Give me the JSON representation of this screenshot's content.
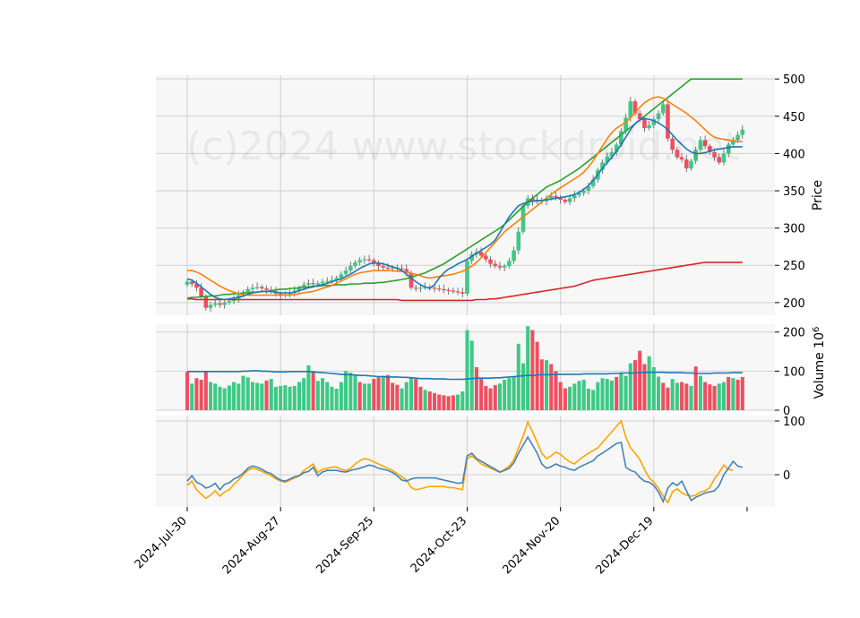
{
  "watermark": "(c)2024 www.stockdroid.net",
  "colors": {
    "up": "#3dc985",
    "down": "#ef4f60",
    "panel_bg": "#f7f7f7",
    "grid": "#cfcfcf",
    "ma_fast": "#1f77b4",
    "ma_mid": "#ff7f0e",
    "ma_slow": "#2ca02c",
    "ma_long": "#d62728",
    "vol_ma": "#1f77b4",
    "osc_a": "#4682b4",
    "osc_b": "#ffa500"
  },
  "chart_data": {
    "type": "candlestick",
    "x_tick_labels": [
      "2024-Jul-30",
      "2024-Aug-27",
      "2024-Sep-25",
      "2024-Oct-23",
      "2024-Nov-20",
      "2024-Dec-19"
    ],
    "x_tick_index": [
      0,
      20,
      40,
      60,
      80,
      100
    ],
    "n_sessions": 120,
    "price": {
      "ylabel": "Price",
      "ylim": [
        183,
        505
      ],
      "yticks": [
        200,
        250,
        300,
        350,
        400,
        450,
        500
      ],
      "closes": [
        228,
        225,
        220,
        208,
        193,
        197,
        199,
        197,
        200,
        202,
        205,
        210,
        214,
        218,
        220,
        221,
        219,
        217,
        215,
        212,
        210,
        211,
        213,
        216,
        220,
        224,
        226,
        225,
        226,
        228,
        229,
        230,
        233,
        238,
        243,
        249,
        254,
        257,
        258,
        257,
        253,
        249,
        247,
        246,
        247,
        246,
        245,
        240,
        220,
        219,
        220,
        221,
        220,
        219,
        218,
        217,
        216,
        215,
        214,
        212,
        256,
        265,
        268,
        263,
        258,
        252,
        249,
        247,
        249,
        256,
        270,
        295,
        330,
        340,
        335,
        338,
        336,
        340,
        343,
        341,
        338,
        335,
        340,
        344,
        347,
        350,
        356,
        365,
        378,
        388,
        396,
        402,
        412,
        430,
        448,
        470,
        454,
        446,
        434,
        438,
        446,
        454,
        466,
        420,
        405,
        395,
        392,
        380,
        390,
        405,
        418,
        410,
        402,
        395,
        388,
        400,
        412,
        418,
        425,
        432
      ],
      "ma_fast": [
        232,
        230,
        226,
        221,
        216,
        211,
        207,
        205,
        204,
        205,
        206,
        207,
        209,
        211,
        213,
        214,
        215,
        215,
        215,
        214,
        213,
        213,
        213,
        214,
        216,
        218,
        220,
        221,
        223,
        224,
        226,
        228,
        230,
        232,
        235,
        238,
        242,
        246,
        249,
        252,
        253,
        253,
        252,
        250,
        248,
        246,
        243,
        238,
        233,
        228,
        224,
        221,
        219,
        224,
        233,
        240,
        245,
        248,
        252,
        255,
        258,
        262,
        266,
        270,
        274,
        278,
        284,
        294,
        305,
        315,
        323,
        330,
        333,
        335,
        336,
        337,
        337,
        338,
        339,
        340,
        341,
        342,
        343,
        345,
        348,
        352,
        357,
        364,
        372,
        380,
        388,
        395,
        403,
        412,
        422,
        432,
        440,
        445,
        447,
        446,
        444,
        441,
        437,
        432,
        425,
        418,
        412,
        406,
        402,
        400,
        400,
        401,
        403,
        405,
        406,
        407,
        408,
        409,
        409,
        409
      ],
      "ma_mid": [
        243,
        243,
        241,
        238,
        234,
        230,
        226,
        222,
        219,
        216,
        214,
        212,
        211,
        210,
        210,
        210,
        210,
        210,
        210,
        210,
        210,
        210,
        210,
        211,
        212,
        213,
        214,
        215,
        217,
        219,
        221,
        223,
        226,
        229,
        232,
        235,
        238,
        240,
        241,
        242,
        243,
        243,
        243,
        243,
        243,
        242,
        242,
        241,
        239,
        238,
        236,
        234,
        233,
        234,
        235,
        236,
        237,
        238,
        240,
        242,
        245,
        249,
        254,
        260,
        267,
        274,
        281,
        288,
        295,
        300,
        305,
        310,
        315,
        320,
        325,
        330,
        335,
        340,
        345,
        350,
        354,
        358,
        362,
        366,
        370,
        375,
        382,
        390,
        400,
        410,
        420,
        428,
        434,
        438,
        442,
        448,
        455,
        462,
        468,
        472,
        475,
        476,
        474,
        470,
        466,
        462,
        458,
        454,
        449,
        444,
        438,
        432,
        426,
        422,
        420,
        419,
        418,
        417,
        416,
        416
      ],
      "ma_slow": [
        206,
        207,
        207,
        208,
        208,
        209,
        209,
        210,
        211,
        211,
        212,
        212,
        213,
        213,
        214,
        214,
        215,
        215,
        216,
        217,
        218,
        218,
        219,
        219,
        220,
        221,
        221,
        222,
        222,
        223,
        223,
        223,
        224,
        224,
        224,
        225,
        225,
        225,
        226,
        226,
        226,
        227,
        227,
        228,
        229,
        230,
        231,
        232,
        234,
        236,
        238,
        240,
        243,
        246,
        249,
        252,
        256,
        260,
        264,
        268,
        272,
        276,
        280,
        284,
        288,
        292,
        296,
        300,
        305,
        311,
        317,
        323,
        329,
        335,
        340,
        345,
        350,
        355,
        358,
        361,
        364,
        368,
        372,
        376,
        380,
        385,
        390,
        395,
        400,
        405,
        410,
        415,
        420,
        425,
        430,
        435,
        440,
        445,
        450,
        455,
        460,
        465,
        470,
        475,
        480,
        485,
        490,
        495,
        500,
        500,
        500,
        500,
        500,
        500,
        500,
        500,
        500,
        500,
        500,
        500
      ],
      "ma_long": [
        205,
        205,
        204,
        204,
        204,
        204,
        204,
        204,
        204,
        204,
        204,
        204,
        204,
        204,
        204,
        204,
        204,
        204,
        204,
        204,
        204,
        204,
        204,
        204,
        204,
        204,
        204,
        204,
        204,
        204,
        204,
        204,
        204,
        204,
        204,
        204,
        204,
        204,
        204,
        204,
        204,
        204,
        204,
        204,
        204,
        204,
        203,
        203,
        203,
        203,
        203,
        203,
        203,
        203,
        203,
        203,
        203,
        203,
        203,
        203,
        203,
        203,
        204,
        204,
        204,
        205,
        205,
        206,
        207,
        208,
        209,
        210,
        211,
        212,
        213,
        214,
        215,
        216,
        217,
        218,
        219,
        220,
        221,
        222,
        224,
        226,
        228,
        230,
        231,
        232,
        233,
        234,
        235,
        236,
        237,
        238,
        239,
        240,
        241,
        242,
        243,
        244,
        245,
        246,
        247,
        248,
        249,
        250,
        251,
        252,
        253,
        254,
        254,
        254,
        254,
        254,
        254,
        254,
        254,
        254
      ]
    },
    "volume": {
      "ylabel": "Volume  10^6",
      "ylim": [
        0,
        220
      ],
      "yticks": [
        0,
        100,
        200
      ],
      "values": [
        98,
        68,
        82,
        78,
        100,
        72,
        68,
        60,
        56,
        63,
        72,
        68,
        88,
        84,
        72,
        70,
        68,
        76,
        80,
        60,
        62,
        64,
        60,
        62,
        72,
        82,
        115,
        100,
        75,
        82,
        72,
        60,
        55,
        72,
        100,
        96,
        90,
        72,
        68,
        68,
        80,
        84,
        88,
        90,
        70,
        65,
        56,
        72,
        85,
        80,
        60,
        52,
        48,
        44,
        40,
        38,
        36,
        38,
        40,
        48,
        205,
        178,
        110,
        80,
        62,
        56,
        64,
        68,
        78,
        82,
        86,
        170,
        120,
        215,
        205,
        175,
        130,
        128,
        118,
        100,
        72,
        56,
        60,
        68,
        75,
        78,
        55,
        52,
        72,
        82,
        80,
        76,
        85,
        96,
        88,
        120,
        128,
        152,
        118,
        138,
        110,
        86,
        70,
        58,
        80,
        70,
        72,
        68,
        62,
        112,
        88,
        72,
        66,
        62,
        68,
        72,
        85,
        82,
        78,
        85
      ],
      "up": [
        false,
        true,
        false,
        false,
        false,
        true,
        true,
        true,
        true,
        true,
        true,
        true,
        true,
        true,
        true,
        true,
        true,
        false,
        true,
        true,
        true,
        true,
        true,
        true,
        true,
        true,
        true,
        false,
        true,
        true,
        true,
        true,
        true,
        true,
        true,
        true,
        true,
        false,
        true,
        true,
        false,
        false,
        true,
        false,
        false,
        false,
        true,
        true,
        true,
        false,
        false,
        true,
        false,
        false,
        false,
        false,
        false,
        false,
        true,
        true,
        true,
        true,
        false,
        false,
        false,
        false,
        false,
        true,
        true,
        true,
        true,
        true,
        true,
        true,
        false,
        false,
        false,
        true,
        false,
        false,
        false,
        false,
        true,
        true,
        true,
        true,
        true,
        true,
        true,
        true,
        true,
        true,
        false,
        true,
        true,
        true,
        false,
        false,
        false,
        true,
        true,
        true,
        false,
        false,
        true,
        true,
        false,
        false,
        true,
        false,
        true,
        false,
        false,
        false,
        true,
        true,
        false,
        true,
        false,
        false
      ],
      "ma": [
        99,
        99,
        99,
        99,
        99,
        99,
        99,
        99,
        99,
        99,
        99,
        99,
        100,
        100,
        101,
        101,
        100,
        100,
        99,
        98,
        98,
        98,
        99,
        99,
        99,
        99,
        99,
        98,
        97,
        96,
        95,
        94,
        93,
        92,
        91,
        91,
        90,
        89,
        89,
        88,
        87,
        86,
        86,
        85,
        85,
        85,
        84,
        84,
        83,
        82,
        81,
        81,
        81,
        80,
        80,
        80,
        79,
        79,
        79,
        79,
        80,
        81,
        82,
        82,
        82,
        82,
        83,
        83,
        84,
        85,
        86,
        87,
        88,
        89,
        89,
        90,
        91,
        91,
        91,
        92,
        92,
        92,
        92,
        92,
        92,
        93,
        93,
        93,
        93,
        93,
        93,
        94,
        94,
        95,
        95,
        95,
        95,
        96,
        96,
        97,
        97,
        97,
        97,
        96,
        96,
        96,
        96,
        95,
        95,
        94,
        94,
        94,
        94,
        95,
        95,
        95,
        95,
        96,
        96,
        96
      ]
    },
    "oscillator": {
      "ylim": [
        -60,
        110
      ],
      "yticks": [
        0,
        100
      ],
      "line_a": [
        -12,
        -2,
        -14,
        -18,
        -25,
        -22,
        -16,
        -28,
        -18,
        -15,
        -8,
        -4,
        3,
        12,
        16,
        14,
        10,
        5,
        2,
        -5,
        -10,
        -12,
        -8,
        -4,
        -2,
        4,
        6,
        14,
        -2,
        5,
        8,
        8,
        8,
        6,
        5,
        8,
        10,
        12,
        15,
        18,
        16,
        12,
        10,
        8,
        4,
        -2,
        -10,
        -12,
        -8,
        -6,
        -6,
        -6,
        -6,
        -6,
        -8,
        -10,
        -12,
        -14,
        -16,
        -15,
        35,
        40,
        30,
        25,
        20,
        15,
        10,
        5,
        8,
        12,
        22,
        40,
        55,
        70,
        55,
        40,
        20,
        12,
        15,
        20,
        16,
        14,
        10,
        8,
        14,
        18,
        22,
        26,
        35,
        40,
        46,
        52,
        58,
        60,
        14,
        8,
        5,
        -5,
        -12,
        -14,
        -20,
        -32,
        -50,
        -25,
        -15,
        -20,
        -12,
        -30,
        -48,
        -42,
        -38,
        -34,
        -32,
        -30,
        -20,
        0,
        12,
        25,
        16,
        14
      ],
      "line_b": [
        -20,
        -12,
        -28,
        -36,
        -44,
        -38,
        -30,
        -40,
        -32,
        -28,
        -18,
        -10,
        0,
        8,
        12,
        10,
        6,
        2,
        -2,
        -8,
        -12,
        -14,
        -10,
        -6,
        -2,
        8,
        14,
        20,
        4,
        10,
        12,
        14,
        14,
        10,
        8,
        12,
        20,
        26,
        30,
        28,
        24,
        20,
        16,
        12,
        8,
        2,
        -4,
        -10,
        -24,
        -28,
        -26,
        -24,
        -22,
        -22,
        -22,
        -22,
        -24,
        -24,
        -26,
        -28,
        30,
        35,
        28,
        20,
        16,
        12,
        8,
        4,
        10,
        16,
        28,
        50,
        72,
        98,
        80,
        60,
        40,
        30,
        35,
        42,
        38,
        30,
        24,
        20,
        28,
        34,
        40,
        45,
        50,
        60,
        70,
        80,
        90,
        100,
        70,
        50,
        40,
        28,
        10,
        -6,
        -14,
        -25,
        -40,
        -52,
        -32,
        -26,
        -34,
        -38,
        -40,
        -38,
        -32,
        -30,
        -24,
        -8,
        4,
        18,
        10,
        8
      ]
    }
  }
}
